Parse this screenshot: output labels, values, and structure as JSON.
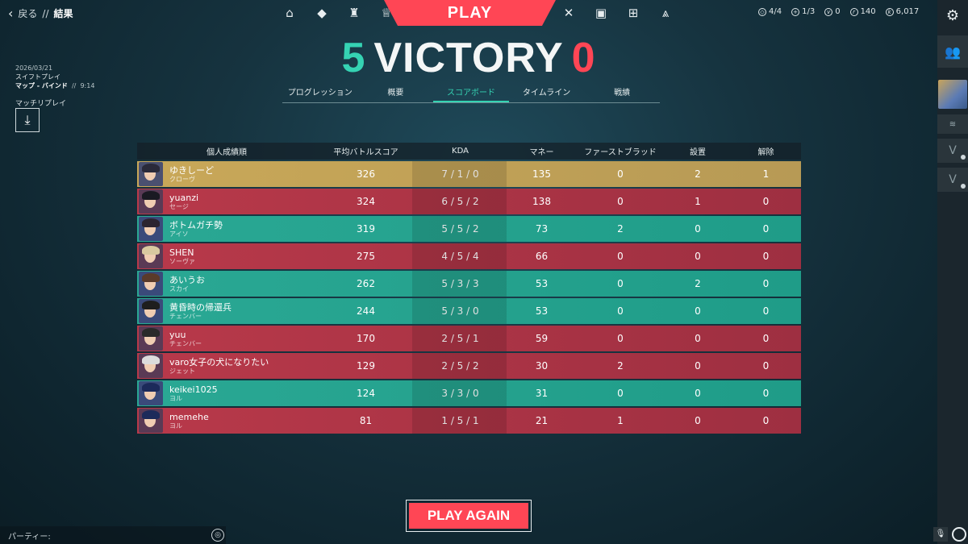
{
  "header": {
    "back_label": "戻る",
    "separator": "//",
    "page_title": "結果",
    "play_label": "PLAY",
    "currency": {
      "slots": "4/4",
      "boosts": "1/3",
      "vp": "0",
      "radianite": "140",
      "kingdom": "6,017"
    }
  },
  "result": {
    "team_score": "5",
    "outcome": "VICTORY",
    "enemy_score": "0"
  },
  "tabs": [
    "プログレッション",
    "概要",
    "スコアボード",
    "タイムライン",
    "戦績"
  ],
  "active_tab": 2,
  "match": {
    "date": "2026/03/21",
    "mode": "スイフトプレイ",
    "map": "マップ - バインド",
    "sep": "//",
    "duration": "9:14",
    "replay_label": "マッチリプレイ"
  },
  "scoreboard": {
    "headers": [
      "個人成績順",
      "平均バトルスコア",
      "KDA",
      "マネー",
      "ファーストブラッド",
      "設置",
      "解除"
    ],
    "rows": [
      {
        "name": "ゆきしーど",
        "agent": "クローヴ",
        "team": "me",
        "acs": "326",
        "kda": "7 / 1 / 0",
        "money": "135",
        "fb": "0",
        "plants": "2",
        "defuses": "1"
      },
      {
        "name": "yuanzi",
        "agent": "セージ",
        "team": "enemy",
        "acs": "324",
        "kda": "6 / 5 / 2",
        "money": "138",
        "fb": "0",
        "plants": "1",
        "defuses": "0"
      },
      {
        "name": "ボトムガチ勢",
        "agent": "アイソ",
        "team": "ally",
        "acs": "319",
        "kda": "5 / 5 / 2",
        "money": "73",
        "fb": "2",
        "plants": "0",
        "defuses": "0"
      },
      {
        "name": "SHEN",
        "agent": "ソーヴァ",
        "team": "enemy",
        "acs": "275",
        "kda": "4 / 5 / 4",
        "money": "66",
        "fb": "0",
        "plants": "0",
        "defuses": "0"
      },
      {
        "name": "あいうお",
        "agent": "スカイ",
        "team": "ally",
        "acs": "262",
        "kda": "5 / 3 / 3",
        "money": "53",
        "fb": "0",
        "plants": "2",
        "defuses": "0"
      },
      {
        "name": "黄昏時の帰還兵",
        "agent": "チェンバー",
        "team": "ally",
        "acs": "244",
        "kda": "5 / 3 / 0",
        "money": "53",
        "fb": "0",
        "plants": "0",
        "defuses": "0"
      },
      {
        "name": "yuu",
        "agent": "チェンバー",
        "team": "enemy",
        "acs": "170",
        "kda": "2 / 5 / 1",
        "money": "59",
        "fb": "0",
        "plants": "0",
        "defuses": "0"
      },
      {
        "name": "varo女子の犬になりたい",
        "agent": "ジェット",
        "team": "enemy",
        "acs": "129",
        "kda": "2 / 5 / 2",
        "money": "30",
        "fb": "2",
        "plants": "0",
        "defuses": "0"
      },
      {
        "name": "keikei1025",
        "agent": "ヨル",
        "team": "ally",
        "acs": "124",
        "kda": "3 / 3 / 0",
        "money": "31",
        "fb": "0",
        "plants": "0",
        "defuses": "0"
      },
      {
        "name": "memehe",
        "agent": "ヨル",
        "team": "enemy",
        "acs": "81",
        "kda": "1 / 5 / 1",
        "money": "21",
        "fb": "1",
        "plants": "0",
        "defuses": "0"
      }
    ]
  },
  "play_again_label": "PLAY AGAIN",
  "party_label": "パーティー:",
  "colors": {
    "accent_red": "#ff4655",
    "ally_teal": "#2aa894",
    "enemy_red": "#b8394a",
    "self_gold": "#c9a858"
  }
}
